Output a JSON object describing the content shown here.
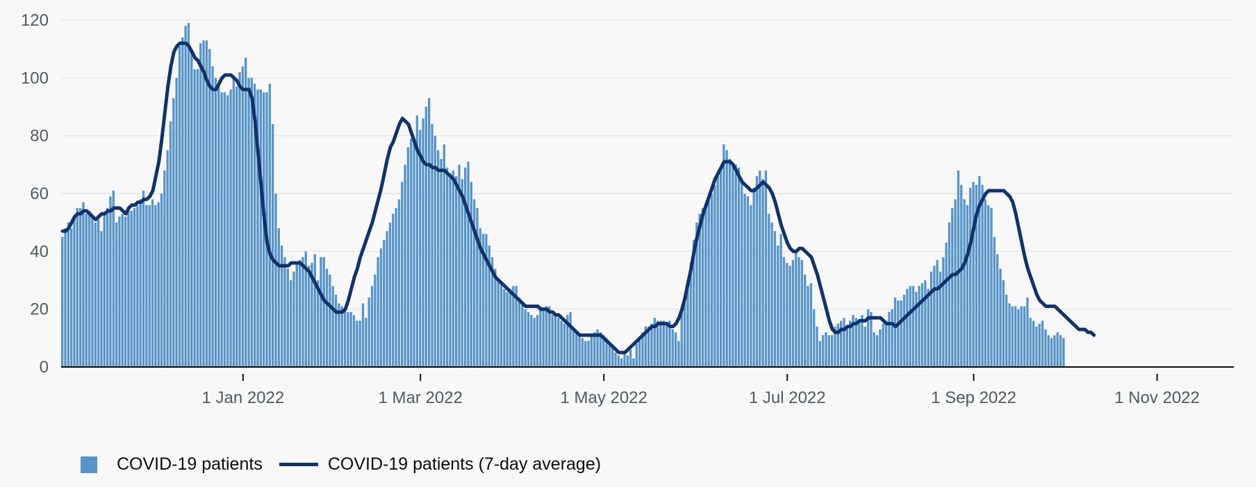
{
  "colors": {
    "bar": "#5694ca",
    "line": "#12326b",
    "grid": "#e6e6e6",
    "axis": "#0b0c0c",
    "text": "#505a5f"
  },
  "legend": {
    "items": [
      {
        "label": "COVID-19 patients",
        "kind": "swatch"
      },
      {
        "label": "COVID-19 patients (7-day average)",
        "kind": "line"
      }
    ]
  },
  "chart_data": {
    "type": "bar",
    "title": "",
    "xlabel": "",
    "ylabel": "",
    "ylim": [
      0,
      120
    ],
    "yticks": [
      0,
      20,
      40,
      60,
      80,
      100,
      120
    ],
    "grid": "horizontal",
    "legend_position": "bottom-left",
    "x_start_date": "2021-11-02",
    "x_end_date": "2022-11-26",
    "xtick_labels": [
      {
        "date": "2022-01-01",
        "label": "1 Jan 2022"
      },
      {
        "date": "2022-03-01",
        "label": "1 Mar 2022"
      },
      {
        "date": "2022-05-01",
        "label": "1 May 2022"
      },
      {
        "date": "2022-07-01",
        "label": "1 Jul 2022"
      },
      {
        "date": "2022-09-01",
        "label": "1 Sep 2022"
      },
      {
        "date": "2022-11-01",
        "label": "1 Nov 2022"
      }
    ],
    "series": [
      {
        "name": "COVID-19 patients",
        "type": "bar",
        "values": [
          45,
          48,
          50,
          48,
          52,
          55,
          55,
          57,
          53,
          54,
          52,
          50,
          51,
          47,
          53,
          55,
          59,
          61,
          50,
          52,
          53,
          52,
          55,
          54,
          55,
          56,
          58,
          61,
          56,
          56,
          58,
          56,
          57,
          60,
          68,
          75,
          85,
          93,
          100,
          111,
          114,
          118,
          119,
          110,
          103,
          103,
          112,
          113,
          113,
          110,
          104,
          100,
          98,
          95,
          95,
          94,
          96,
          100,
          97,
          102,
          104,
          107,
          100,
          100,
          98,
          96,
          96,
          95,
          95,
          98,
          84,
          60,
          48,
          42,
          38,
          34,
          30,
          33,
          36,
          37,
          38,
          40,
          35,
          36,
          39,
          30,
          38,
          38,
          34,
          32,
          28,
          25,
          22,
          21,
          20,
          19,
          19,
          18,
          16,
          16,
          22,
          17,
          24,
          28,
          32,
          38,
          41,
          44,
          47,
          50,
          53,
          55,
          58,
          64,
          70,
          76,
          79,
          78,
          87,
          82,
          86,
          90,
          93,
          84,
          80,
          75,
          72,
          77,
          69,
          67,
          68,
          66,
          70,
          65,
          69,
          71,
          64,
          58,
          55,
          48,
          46,
          46,
          42,
          38,
          34,
          30,
          29,
          27,
          26,
          27,
          28,
          28,
          24,
          22,
          20,
          19,
          18,
          17,
          18,
          21,
          20,
          21,
          21,
          18,
          18,
          17,
          16,
          15,
          18,
          19,
          13,
          12,
          11,
          10,
          9,
          9,
          11,
          12,
          13,
          12,
          11,
          10,
          8,
          7,
          5,
          4,
          3,
          5,
          4,
          6,
          3,
          8,
          10,
          12,
          14,
          14,
          15,
          17,
          16,
          16,
          16,
          15,
          16,
          13,
          12,
          9,
          20,
          24,
          30,
          36,
          44,
          50,
          53,
          55,
          56,
          58,
          60,
          63,
          66,
          68,
          77,
          75,
          72,
          70,
          70,
          69,
          65,
          60,
          59,
          56,
          62,
          66,
          68,
          65,
          68,
          53,
          50,
          47,
          42,
          46,
          38,
          36,
          35,
          37,
          40,
          38,
          37,
          32,
          28,
          29,
          20,
          14,
          9,
          11,
          12,
          11,
          11,
          14,
          15,
          16,
          17,
          14,
          16,
          18,
          17,
          16,
          18,
          14,
          20,
          19,
          12,
          11,
          13,
          15,
          16,
          19,
          20,
          24,
          23,
          23,
          25,
          27,
          28,
          28,
          26,
          28,
          29,
          30,
          27,
          33,
          35,
          37,
          33,
          38,
          43,
          50,
          55,
          58,
          68,
          63,
          58,
          56,
          62,
          64,
          63,
          66,
          63,
          58,
          56,
          55,
          45,
          39,
          34,
          30,
          25,
          22,
          21,
          21,
          20,
          21,
          21,
          24,
          17,
          16,
          14,
          15,
          16,
          13,
          11,
          10,
          11,
          12,
          11,
          10
        ]
      },
      {
        "name": "COVID-19 patients (7-day average)",
        "type": "line",
        "values": [
          47,
          47,
          48,
          50,
          52,
          53,
          53,
          54,
          54,
          53,
          52,
          51,
          52,
          53,
          53,
          54,
          54,
          55,
          55,
          55,
          54,
          53,
          55,
          56,
          56,
          57,
          57,
          58,
          58,
          59,
          61,
          66,
          71,
          79,
          88,
          97,
          104,
          109,
          111,
          112,
          112,
          112,
          111,
          109,
          107,
          106,
          104,
          102,
          99,
          97,
          96,
          96,
          98,
          100,
          101,
          101,
          101,
          100,
          99,
          97,
          96,
          96,
          96,
          93,
          85,
          74,
          63,
          52,
          43,
          39,
          37,
          36,
          35,
          35,
          35,
          35,
          36,
          36,
          36,
          36,
          35,
          34,
          33,
          31,
          29,
          27,
          25,
          23,
          22,
          21,
          20,
          19,
          19,
          19,
          20,
          23,
          27,
          31,
          34,
          38,
          41,
          44,
          47,
          50,
          54,
          58,
          62,
          67,
          72,
          76,
          78,
          81,
          84,
          86,
          85,
          84,
          81,
          78,
          75,
          73,
          71,
          70,
          70,
          69,
          69,
          68,
          68,
          68,
          67,
          66,
          65,
          63,
          61,
          59,
          56,
          53,
          50,
          47,
          44,
          41,
          39,
          37,
          35,
          33,
          31,
          30,
          29,
          28,
          27,
          26,
          25,
          24,
          23,
          22,
          21,
          21,
          21,
          21,
          21,
          20,
          20,
          20,
          19,
          19,
          18,
          18,
          17,
          16,
          15,
          14,
          13,
          12,
          11,
          11,
          11,
          11,
          11,
          11,
          11,
          11,
          10,
          9,
          8,
          7,
          6,
          5,
          5,
          5,
          6,
          7,
          8,
          9,
          10,
          11,
          12,
          13,
          14,
          14,
          15,
          15,
          15,
          15,
          14,
          14,
          15,
          17,
          20,
          24,
          29,
          34,
          40,
          45,
          49,
          53,
          56,
          59,
          62,
          65,
          67,
          69,
          71,
          71,
          71,
          70,
          68,
          66,
          64,
          63,
          62,
          61,
          61,
          62,
          63,
          64,
          63,
          62,
          60,
          57,
          53,
          49,
          46,
          43,
          41,
          40,
          40,
          41,
          41,
          40,
          39,
          38,
          35,
          32,
          28,
          24,
          20,
          16,
          13,
          12,
          12,
          13,
          13,
          14,
          14,
          15,
          15,
          16,
          16,
          16,
          17,
          17,
          17,
          17,
          17,
          16,
          15,
          15,
          15,
          14,
          15,
          16,
          17,
          18,
          19,
          20,
          21,
          22,
          23,
          24,
          25,
          26,
          27,
          27,
          28,
          29,
          30,
          31,
          32,
          32,
          33,
          34,
          36,
          39,
          43,
          48,
          53,
          56,
          58,
          60,
          61,
          61,
          61,
          61,
          61,
          61,
          60,
          59,
          57,
          53,
          48,
          43,
          38,
          34,
          31,
          28,
          25,
          23,
          22,
          21,
          21,
          21,
          21,
          20,
          19,
          18,
          17,
          16,
          15,
          14,
          13,
          13,
          13,
          12,
          12,
          11
        ]
      }
    ]
  }
}
